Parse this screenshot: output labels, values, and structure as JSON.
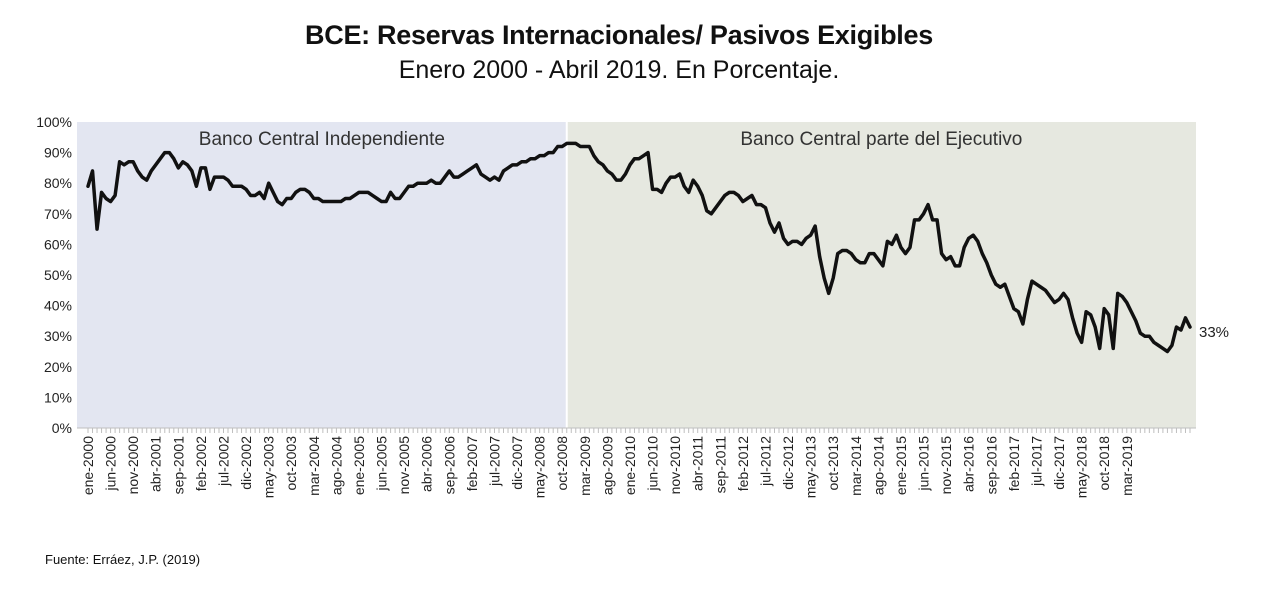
{
  "title": "BCE: Reservas Internacionales/ Pasivos Exigibles",
  "subtitle": "Enero 2000 - Abril 2019. En Porcentaje.",
  "source": "Fuente: Erráez, J.P. (2019)",
  "chart_data": {
    "type": "line",
    "y_unit": "%",
    "ylim": [
      0,
      100
    ],
    "y_ticks": [
      "0%",
      "10%",
      "20%",
      "30%",
      "40%",
      "50%",
      "60%",
      "70%",
      "80%",
      "90%",
      "100%"
    ],
    "x_tick_labels": [
      "ene-2000",
      "jun-2000",
      "nov-2000",
      "abr-2001",
      "sep-2001",
      "feb-2002",
      "jul-2002",
      "dic-2002",
      "may-2003",
      "oct-2003",
      "mar-2004",
      "ago-2004",
      "ene-2005",
      "jun-2005",
      "nov-2005",
      "abr-2006",
      "sep-2006",
      "feb-2007",
      "jul-2007",
      "dic-2007",
      "may-2008",
      "oct-2008",
      "mar-2009",
      "ago-2009",
      "ene-2010",
      "jun-2010",
      "nov-2010",
      "abr-2011",
      "sep-2011",
      "feb-2012",
      "jul-2012",
      "dic-2012",
      "may-2013",
      "oct-2013",
      "mar-2014",
      "ago-2014",
      "ene-2015",
      "jun-2015",
      "nov-2015",
      "abr-2016",
      "sep-2016",
      "feb-2017",
      "jul-2017",
      "dic-2017",
      "may-2018",
      "oct-2018",
      "mar-2019"
    ],
    "regions": [
      {
        "label": "Banco Central Independiente",
        "start": "2000-01",
        "end": "2008-11",
        "color": "#e3e6f1"
      },
      {
        "label": "Banco Central parte del Ejecutivo",
        "start": "2008-11",
        "end": "2019-05",
        "color": "#e6e8e0"
      }
    ],
    "end_annotation": "33%",
    "line_color": "#111111",
    "grid": false,
    "series": [
      {
        "start": "2000-01",
        "values": [
          79,
          84,
          65,
          77,
          75,
          74,
          76,
          87,
          86,
          87,
          87,
          84,
          82,
          81,
          84,
          86,
          88,
          90,
          90,
          88,
          85,
          87,
          86,
          84,
          79,
          85,
          85,
          78,
          82,
          82,
          82,
          81,
          79,
          79,
          79,
          78,
          76,
          76,
          77,
          75,
          80,
          77,
          74,
          73,
          75,
          75,
          77,
          78,
          78,
          77,
          75,
          75,
          74,
          74,
          74,
          74,
          74,
          75,
          75,
          76,
          77,
          77,
          77,
          76,
          75,
          74,
          74,
          77,
          75,
          75,
          77,
          79,
          79,
          80,
          80,
          80,
          81,
          80,
          80,
          82,
          84,
          82,
          82,
          83,
          84,
          85,
          86,
          83,
          82,
          81,
          82,
          81,
          84,
          85,
          86,
          86,
          87,
          87,
          88,
          88,
          89,
          89,
          90,
          90,
          92,
          92,
          93,
          93,
          93,
          92,
          92,
          92,
          89,
          87,
          86,
          84,
          83,
          81,
          81,
          83,
          86,
          88,
          88,
          89,
          90,
          78,
          78,
          77,
          80,
          82,
          82,
          83,
          79,
          77,
          81,
          79,
          76,
          71,
          70,
          72,
          74,
          76,
          77,
          77,
          76,
          74,
          75,
          76,
          73,
          73,
          72,
          67,
          64,
          67,
          62,
          60,
          61,
          61,
          60,
          62,
          63,
          66,
          56,
          49,
          44,
          49,
          57,
          58,
          58,
          57,
          55,
          54,
          54,
          57,
          57,
          55,
          53,
          61,
          60,
          63,
          59,
          57,
          59,
          68,
          68,
          70,
          73,
          68,
          68,
          57,
          55,
          56,
          53,
          53,
          59,
          62,
          63,
          61,
          57,
          54,
          50,
          47,
          46,
          47,
          43,
          39,
          38,
          34,
          42,
          48,
          47,
          46,
          45,
          43,
          41,
          42,
          44,
          42,
          36,
          31,
          28,
          38,
          37,
          33,
          26,
          39,
          37,
          26,
          44,
          43,
          41,
          38,
          35,
          31,
          30,
          30,
          28,
          27,
          26,
          25,
          27,
          33,
          32,
          36,
          33
        ]
      }
    ]
  }
}
